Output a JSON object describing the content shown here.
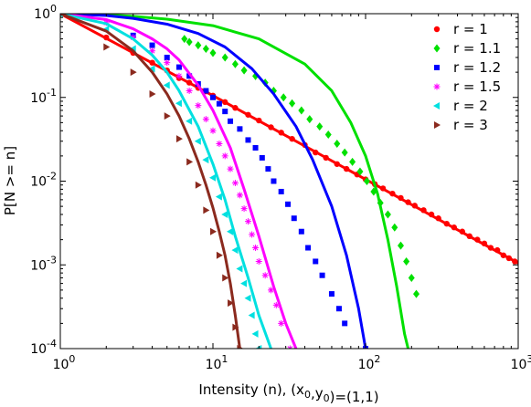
{
  "chart_data": {
    "type": "scatter",
    "xscale": "log",
    "yscale": "log",
    "xlim": [
      1,
      1000
    ],
    "ylim": [
      0.0001,
      1
    ],
    "grid": false,
    "legend_position": "top-right",
    "xlabel": "Intensity (n), (x_0,y_0)=(1,1)",
    "ylabel": "P[N >= n]",
    "x_ticks": [
      {
        "value": 1,
        "base": "10",
        "exp": "0"
      },
      {
        "value": 10,
        "base": "10",
        "exp": "1"
      },
      {
        "value": 100,
        "base": "10",
        "exp": "2"
      },
      {
        "value": 1000,
        "base": "10",
        "exp": "3"
      }
    ],
    "y_ticks": [
      {
        "value": 1,
        "base": "10",
        "exp": "0"
      },
      {
        "value": 0.1,
        "base": "10",
        "exp": "-1"
      },
      {
        "value": 0.01,
        "base": "10",
        "exp": "-2"
      },
      {
        "value": 0.001,
        "base": "10",
        "exp": "-3"
      },
      {
        "value": 0.0001,
        "base": "10",
        "exp": "-4"
      }
    ],
    "series": [
      {
        "name": "r = 1",
        "color": "#ff0000",
        "marker": "circle",
        "points": [
          [
            1,
            1
          ],
          [
            2,
            0.52
          ],
          [
            3,
            0.34
          ],
          [
            4,
            0.26
          ],
          [
            5,
            0.21
          ],
          [
            6,
            0.17
          ],
          [
            7,
            0.15
          ],
          [
            8,
            0.13
          ],
          [
            9,
            0.118
          ],
          [
            10,
            0.105
          ],
          [
            12,
            0.088
          ],
          [
            14,
            0.075
          ],
          [
            17,
            0.062
          ],
          [
            20,
            0.053
          ],
          [
            24,
            0.044
          ],
          [
            28,
            0.038
          ],
          [
            33,
            0.032
          ],
          [
            40,
            0.027
          ],
          [
            47,
            0.022
          ],
          [
            55,
            0.019
          ],
          [
            65,
            0.016
          ],
          [
            75,
            0.014
          ],
          [
            88,
            0.012
          ],
          [
            100,
            0.0105
          ],
          [
            115,
            0.0092
          ],
          [
            130,
            0.0082
          ],
          [
            150,
            0.0071
          ],
          [
            170,
            0.0063
          ],
          [
            190,
            0.0056
          ],
          [
            210,
            0.0051
          ],
          [
            240,
            0.0045
          ],
          [
            270,
            0.004
          ],
          [
            300,
            0.0036
          ],
          [
            340,
            0.0031
          ],
          [
            380,
            0.0028
          ],
          [
            430,
            0.0025
          ],
          [
            480,
            0.0022
          ],
          [
            540,
            0.002
          ],
          [
            600,
            0.0018
          ],
          [
            660,
            0.0016
          ],
          [
            730,
            0.0015
          ],
          [
            800,
            0.0013
          ],
          [
            870,
            0.0012
          ],
          [
            950,
            0.0011
          ]
        ],
        "fit": [
          [
            1,
            1
          ],
          [
            10,
            0.105
          ],
          [
            100,
            0.0105
          ],
          [
            1000,
            0.00105
          ]
        ]
      },
      {
        "name": "r = 1.1",
        "color": "#00e000",
        "marker": "diamond",
        "points": [
          [
            1,
            1
          ],
          [
            6.5,
            0.5
          ],
          [
            7,
            0.46
          ],
          [
            8,
            0.42
          ],
          [
            9,
            0.38
          ],
          [
            10,
            0.34
          ],
          [
            12,
            0.3
          ],
          [
            14,
            0.25
          ],
          [
            16,
            0.21
          ],
          [
            19,
            0.18
          ],
          [
            22,
            0.15
          ],
          [
            25,
            0.12
          ],
          [
            29,
            0.1
          ],
          [
            33,
            0.085
          ],
          [
            38,
            0.07
          ],
          [
            43,
            0.055
          ],
          [
            50,
            0.045
          ],
          [
            57,
            0.036
          ],
          [
            65,
            0.028
          ],
          [
            73,
            0.022
          ],
          [
            82,
            0.017
          ],
          [
            92,
            0.013
          ],
          [
            102,
            0.01
          ],
          [
            113,
            0.0075
          ],
          [
            125,
            0.0055
          ],
          [
            140,
            0.004
          ],
          [
            155,
            0.0028
          ],
          [
            170,
            0.0017
          ],
          [
            185,
            0.0011
          ],
          [
            200,
            0.0007
          ],
          [
            215,
            0.00045
          ]
        ],
        "fit": [
          [
            1,
            1
          ],
          [
            2,
            0.97
          ],
          [
            3,
            0.93
          ],
          [
            5,
            0.86
          ],
          [
            10,
            0.72
          ],
          [
            20,
            0.5
          ],
          [
            40,
            0.25
          ],
          [
            60,
            0.12
          ],
          [
            80,
            0.05
          ],
          [
            100,
            0.02
          ],
          [
            120,
            0.007
          ],
          [
            140,
            0.002
          ],
          [
            160,
            0.00055
          ],
          [
            180,
            0.00015
          ],
          [
            190,
            0.0001
          ]
        ]
      },
      {
        "name": "r = 1.2",
        "color": "#0000ff",
        "marker": "square",
        "points": [
          [
            1,
            1
          ],
          [
            3,
            0.55
          ],
          [
            4,
            0.42
          ],
          [
            5,
            0.3
          ],
          [
            6,
            0.23
          ],
          [
            7,
            0.18
          ],
          [
            8,
            0.145
          ],
          [
            9,
            0.12
          ],
          [
            10,
            0.1
          ],
          [
            11,
            0.084
          ],
          [
            12,
            0.068
          ],
          [
            13,
            0.052
          ],
          [
            15,
            0.042
          ],
          [
            17,
            0.031
          ],
          [
            19,
            0.025
          ],
          [
            21,
            0.019
          ],
          [
            23,
            0.014
          ],
          [
            25,
            0.01
          ],
          [
            28,
            0.0075
          ],
          [
            31,
            0.0053
          ],
          [
            34,
            0.0036
          ],
          [
            38,
            0.0025
          ],
          [
            42,
            0.0016
          ],
          [
            47,
            0.0011
          ],
          [
            52,
            0.00075
          ],
          [
            60,
            0.00045
          ],
          [
            67,
            0.0003
          ],
          [
            73,
            0.0002
          ],
          [
            100,
            0.0001
          ]
        ],
        "fit": [
          [
            1,
            1
          ],
          [
            2,
            0.95
          ],
          [
            3,
            0.88
          ],
          [
            5,
            0.75
          ],
          [
            8,
            0.58
          ],
          [
            12,
            0.4
          ],
          [
            18,
            0.22
          ],
          [
            25,
            0.11
          ],
          [
            35,
            0.045
          ],
          [
            45,
            0.018
          ],
          [
            60,
            0.005
          ],
          [
            75,
            0.0013
          ],
          [
            90,
            0.0003
          ],
          [
            100,
            0.0001
          ]
        ]
      },
      {
        "name": "r = 1.5",
        "color": "#ff00ff",
        "marker": "asterisk",
        "points": [
          [
            1,
            1
          ],
          [
            2,
            0.78
          ],
          [
            3,
            0.52
          ],
          [
            4,
            0.36
          ],
          [
            5,
            0.26
          ],
          [
            6,
            0.18
          ],
          [
            7,
            0.12
          ],
          [
            8,
            0.08
          ],
          [
            9,
            0.055
          ],
          [
            10,
            0.04
          ],
          [
            11,
            0.028
          ],
          [
            12,
            0.02
          ],
          [
            13,
            0.014
          ],
          [
            14,
            0.0095
          ],
          [
            15,
            0.0068
          ],
          [
            16,
            0.0047
          ],
          [
            17,
            0.0033
          ],
          [
            18,
            0.0023
          ],
          [
            19,
            0.0016
          ],
          [
            20,
            0.0011
          ],
          [
            22,
            0.00075
          ],
          [
            24,
            0.0005
          ],
          [
            26,
            0.00033
          ],
          [
            28,
            0.0002
          ],
          [
            32,
            0.0001
          ]
        ],
        "fit": [
          [
            1,
            1
          ],
          [
            2,
            0.85
          ],
          [
            3,
            0.66
          ],
          [
            4,
            0.5
          ],
          [
            5,
            0.38
          ],
          [
            6,
            0.28
          ],
          [
            8,
            0.14
          ],
          [
            10,
            0.07
          ],
          [
            13,
            0.025
          ],
          [
            16,
            0.008
          ],
          [
            20,
            0.0022
          ],
          [
            25,
            0.00055
          ],
          [
            30,
            0.0002
          ],
          [
            35,
            0.0001
          ]
        ]
      },
      {
        "name": "r = 2",
        "color": "#00e0e0",
        "marker": "triangle-left",
        "points": [
          [
            1,
            1
          ],
          [
            2,
            0.65
          ],
          [
            3,
            0.38
          ],
          [
            4,
            0.22
          ],
          [
            5,
            0.14
          ],
          [
            6,
            0.085
          ],
          [
            7,
            0.052
          ],
          [
            8,
            0.03
          ],
          [
            9,
            0.018
          ],
          [
            10,
            0.011
          ],
          [
            11,
            0.0065
          ],
          [
            12,
            0.004
          ],
          [
            13,
            0.0025
          ],
          [
            14,
            0.0015
          ],
          [
            15,
            0.0009
          ],
          [
            16,
            0.0006
          ],
          [
            17,
            0.0004
          ],
          [
            18,
            0.00025
          ],
          [
            19,
            0.00015
          ],
          [
            20,
            0.0001
          ]
        ],
        "fit": [
          [
            1,
            1
          ],
          [
            2,
            0.76
          ],
          [
            3,
            0.5
          ],
          [
            4,
            0.32
          ],
          [
            5,
            0.2
          ],
          [
            6,
            0.12
          ],
          [
            8,
            0.045
          ],
          [
            10,
            0.016
          ],
          [
            12,
            0.006
          ],
          [
            14,
            0.0022
          ],
          [
            17,
            0.0007
          ],
          [
            20,
            0.00025
          ],
          [
            24,
            0.0001
          ]
        ]
      },
      {
        "name": "r = 3",
        "color": "#8b2a1e",
        "marker": "triangle-right",
        "points": [
          [
            1,
            1
          ],
          [
            2,
            0.4
          ],
          [
            3,
            0.2
          ],
          [
            4,
            0.11
          ],
          [
            5,
            0.06
          ],
          [
            6,
            0.032
          ],
          [
            7,
            0.017
          ],
          [
            8,
            0.009
          ],
          [
            9,
            0.0045
          ],
          [
            10,
            0.0025
          ],
          [
            11,
            0.0013
          ],
          [
            12,
            0.0007
          ],
          [
            13,
            0.00035
          ],
          [
            14,
            0.00018
          ],
          [
            15,
            0.0001
          ]
        ],
        "fit": [
          [
            1,
            1
          ],
          [
            2,
            0.62
          ],
          [
            3,
            0.36
          ],
          [
            4,
            0.2
          ],
          [
            5,
            0.11
          ],
          [
            6,
            0.06
          ],
          [
            7,
            0.032
          ],
          [
            8,
            0.017
          ],
          [
            9,
            0.009
          ],
          [
            10,
            0.0048
          ],
          [
            11,
            0.0025
          ],
          [
            12,
            0.0013
          ],
          [
            13,
            0.0006
          ],
          [
            14,
            0.00025
          ],
          [
            15,
            0.0001
          ]
        ]
      }
    ]
  }
}
